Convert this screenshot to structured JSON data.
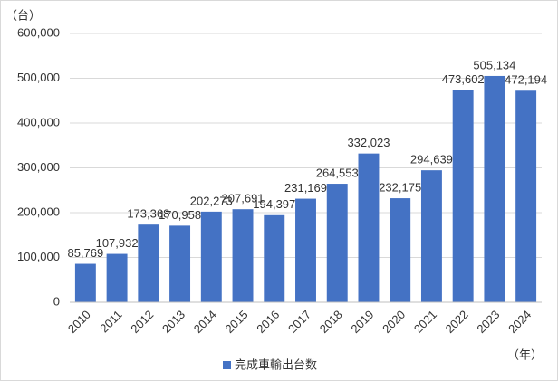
{
  "chart_data": {
    "type": "bar",
    "y_unit_label": "（台）",
    "x_unit_label": "（年）",
    "categories": [
      "2010",
      "2011",
      "2012",
      "2013",
      "2014",
      "2015",
      "2016",
      "2017",
      "2018",
      "2019",
      "2020",
      "2021",
      "2022",
      "2023",
      "2024"
    ],
    "series": [
      {
        "name": "完成車輸出台数",
        "color": "#4472c4",
        "values": [
          85769,
          107932,
          173368,
          170958,
          202273,
          207691,
          194397,
          231169,
          264553,
          332023,
          232175,
          294639,
          473602,
          505134,
          472194
        ],
        "value_labels": [
          "85,769",
          "107,932",
          "173,368",
          "170,958",
          "202,273",
          "207,691",
          "194,397",
          "231,169",
          "264,553",
          "332,023",
          "232,175",
          "294,639",
          "473,602",
          "505,134",
          "472,194"
        ]
      }
    ],
    "ylim": [
      0,
      600000
    ],
    "yticks": [
      0,
      {
        "value": 100000,
        "label": "100,000"
      },
      {
        "value": 200000,
        "label": "200,000"
      },
      {
        "value": 300000,
        "label": "300,000"
      },
      {
        "value": 400000,
        "label": "400,000"
      },
      {
        "value": 500000,
        "label": "500,000"
      },
      {
        "value": 600000,
        "label": "600,000"
      }
    ],
    "grid": true
  }
}
